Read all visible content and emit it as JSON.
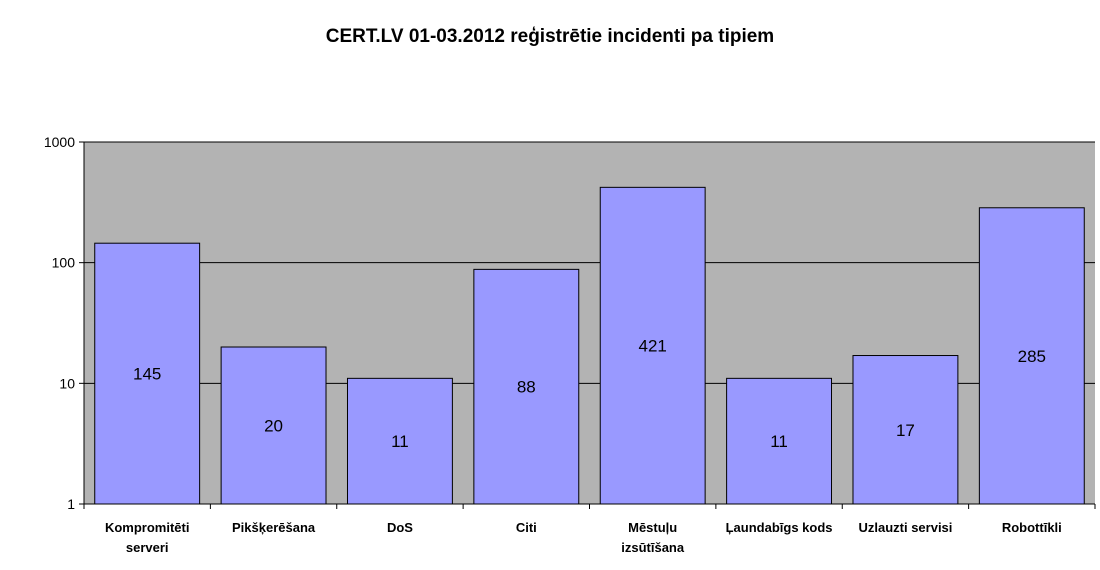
{
  "chart_data": {
    "type": "bar",
    "title": "CERT.LV 01-03.2012 reģistrētie incidenti pa tipiem",
    "categories": [
      [
        "Kompromitēti",
        "serveri"
      ],
      [
        "Pikšķerēšana"
      ],
      [
        "DoS"
      ],
      [
        "Citi"
      ],
      [
        "Mēstuļu",
        "izsūtīšana"
      ],
      [
        "Ļaundabīgs kods"
      ],
      [
        "Uzlauzti servisi"
      ],
      [
        "Robottīkli"
      ]
    ],
    "values": [
      145,
      20,
      11,
      88,
      421,
      11,
      17,
      285
    ],
    "y_scale": "log",
    "ylim": [
      1,
      1000
    ],
    "y_ticks": [
      1,
      10,
      100,
      1000
    ],
    "grid": true,
    "legend": "none",
    "colors": {
      "bar_fill": "#9999ff",
      "bar_stroke": "#000000",
      "plot_background": "#b3b3b3",
      "gridline": "#000000"
    }
  }
}
